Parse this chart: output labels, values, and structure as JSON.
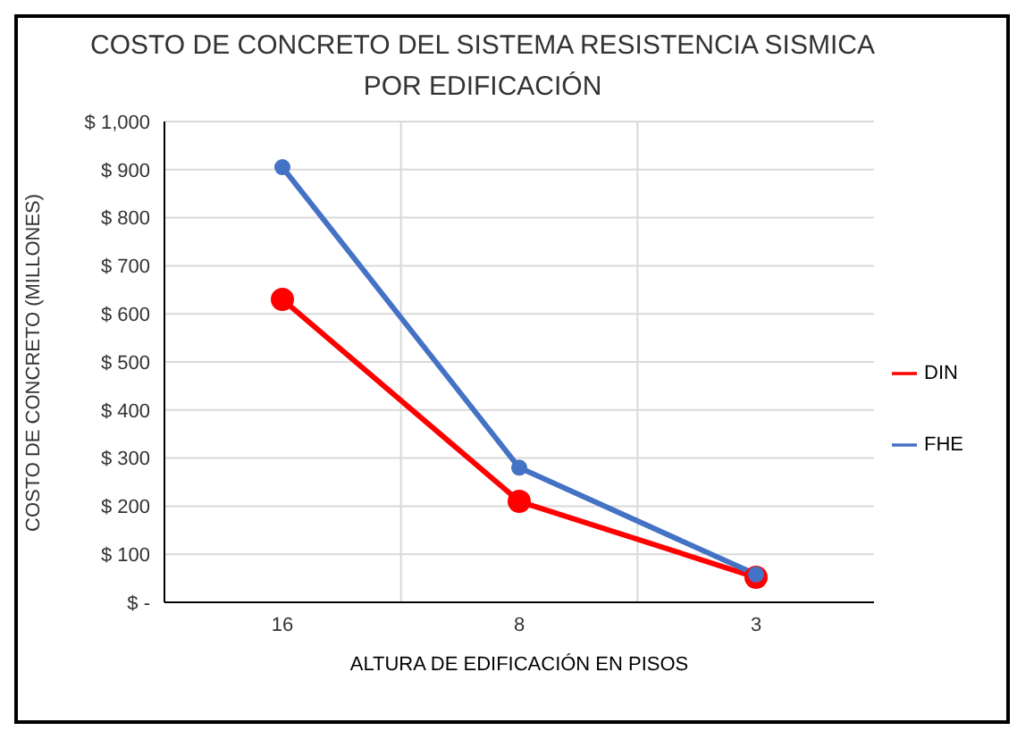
{
  "chart_data": {
    "type": "line",
    "title": "COSTO DE CONCRETO  DEL SISTEMA RESISTENCIA SISMICA POR EDIFICACIÓN",
    "xlabel": "ALTURA DE EDIFICACIÓN EN PISOS",
    "ylabel": "COSTO DE CONCRETO (MILLONES)",
    "categories": [
      "16",
      "8",
      "3"
    ],
    "series": [
      {
        "name": "DIN",
        "color": "#ff0000",
        "values": [
          630,
          210,
          52
        ]
      },
      {
        "name": "FHE",
        "color": "#4472c4",
        "values": [
          905,
          280,
          58
        ]
      }
    ],
    "ylim": [
      0,
      1000
    ],
    "yticks": [
      {
        "value": 0,
        "label": "$ -"
      },
      {
        "value": 100,
        "label": "$ 100"
      },
      {
        "value": 200,
        "label": "$ 200"
      },
      {
        "value": 300,
        "label": "$ 300"
      },
      {
        "value": 400,
        "label": "$ 400"
      },
      {
        "value": 500,
        "label": "$ 500"
      },
      {
        "value": 600,
        "label": "$ 600"
      },
      {
        "value": 700,
        "label": "$ 700"
      },
      {
        "value": 800,
        "label": "$ 800"
      },
      {
        "value": 900,
        "label": "$ 900"
      },
      {
        "value": 1000,
        "label": "$ 1,000"
      }
    ],
    "grid": true,
    "legend": "right",
    "marker": "circle",
    "line_style": "solid"
  }
}
